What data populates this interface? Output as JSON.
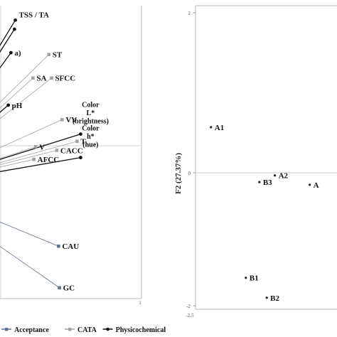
{
  "colors": {
    "acceptance": "#5d7393",
    "cata": "#a3a3a3",
    "physicochemical": "#111111",
    "frame": "#b7b7b7"
  },
  "chart_data": [
    {
      "type": "scatter",
      "description_of_kind": "correlation loading plot (cropped)",
      "xlim": [
        -0.62,
        1
      ],
      "ylim": [
        -0.62,
        1
      ],
      "x_ticks": [
        {
          "value": 1,
          "label": "1"
        }
      ],
      "grid": false,
      "legend_placement": "bottom",
      "legend": [
        {
          "label": "Acceptance",
          "color_key": "acceptance",
          "marker": "square"
        },
        {
          "label": "CATA",
          "color_key": "cata",
          "marker": "square"
        },
        {
          "label": "Physicochemical",
          "color_key": "physicochemical",
          "marker": "circle"
        }
      ],
      "points": [
        {
          "label": "TSS / TA",
          "x": -0.43,
          "y": 0.92,
          "group": "physicochemical"
        },
        {
          "label": "",
          "x": -0.44,
          "y": 0.87,
          "group": "physicochemical"
        },
        {
          "label": "a)",
          "x": -0.48,
          "y": 0.74,
          "group": "physicochemical"
        },
        {
          "label": "ST",
          "x": -0.05,
          "y": 0.73,
          "group": "cata"
        },
        {
          "label": "SA",
          "x": -0.23,
          "y": 0.6,
          "group": "cata"
        },
        {
          "label": "SFCC",
          "x": -0.02,
          "y": 0.6,
          "group": "cata"
        },
        {
          "label": "pH",
          "x": -0.51,
          "y": 0.45,
          "group": "physicochemical"
        },
        {
          "label": "VV",
          "x": 0.1,
          "y": 0.37,
          "group": "cata"
        },
        {
          "label": "Color\nL*\n(brightness)",
          "x": 0.31,
          "y": 0.29,
          "group": "physicochemical"
        },
        {
          "label": "T",
          "x": 0.27,
          "y": 0.25,
          "group": "cata"
        },
        {
          "label": "V",
          "x": -0.2,
          "y": 0.22,
          "group": "cata"
        },
        {
          "label": "CACC",
          "x": 0.04,
          "y": 0.2,
          "group": "cata"
        },
        {
          "label": "AFCC",
          "x": -0.22,
          "y": 0.15,
          "group": "cata"
        },
        {
          "label": "Color\nh*\n(hue)",
          "x": 0.31,
          "y": 0.16,
          "group": "physicochemical"
        },
        {
          "label": "CAU",
          "x": 0.06,
          "y": -0.33,
          "group": "acceptance"
        },
        {
          "label": "GC",
          "x": 0.07,
          "y": -0.56,
          "group": "acceptance"
        }
      ]
    },
    {
      "type": "scatter",
      "description_of_kind": "sample scores (cropped)",
      "xlim": [
        -2.5,
        2
      ],
      "ylim": [
        -2,
        2
      ],
      "ylabel": "F2 (27.37%)",
      "x_ticks": [
        {
          "value": -2.5,
          "label": "-2.5"
        }
      ],
      "y_ticks": [
        {
          "value": 2,
          "label": "2"
        },
        {
          "value": 0,
          "label": "0"
        },
        {
          "value": -2,
          "label": "-2"
        }
      ],
      "grid": false,
      "points": [
        {
          "label": "A1",
          "x": -2.1,
          "y": 0.57
        },
        {
          "label": "B3",
          "x": -0.85,
          "y": -0.14
        },
        {
          "label": "A2",
          "x": -0.45,
          "y": -0.04
        },
        {
          "label": "A",
          "x": 0.45,
          "y": -0.18
        },
        {
          "label": "B1",
          "x": -1.2,
          "y": -1.58
        },
        {
          "label": "B2",
          "x": -0.66,
          "y": -1.88
        }
      ]
    }
  ]
}
